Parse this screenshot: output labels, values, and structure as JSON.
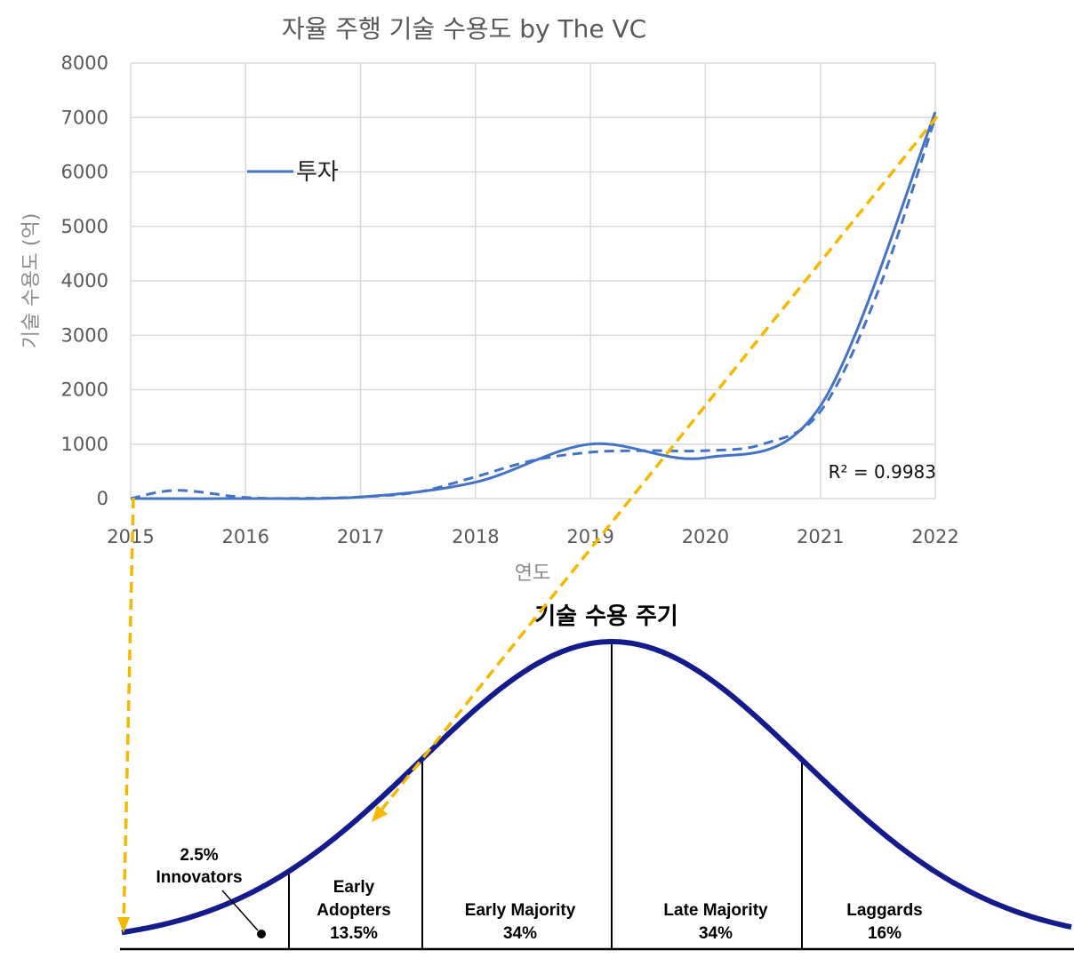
{
  "chart_data": [
    {
      "type": "line",
      "title": "자율 주행 기술 수용도 by The VC",
      "xlabel": "연도",
      "ylabel": "기술 수용도 (억)",
      "xlim": [
        2015,
        2022
      ],
      "ylim": [
        0,
        8000
      ],
      "x_ticks": [
        "2015",
        "2016",
        "2017",
        "2018",
        "2019",
        "2020",
        "2021",
        "2022"
      ],
      "y_ticks": [
        "0",
        "1000",
        "2000",
        "3000",
        "4000",
        "5000",
        "6000",
        "7000",
        "8000"
      ],
      "grid": true,
      "legend_position": "upper-left",
      "series": [
        {
          "name": "투자",
          "color": "#4472C4",
          "x": [
            2015,
            2016,
            2017,
            2018,
            2019,
            2020,
            2021,
            2022
          ],
          "values": [
            0,
            0,
            30,
            300,
            1000,
            750,
            1700,
            7100
          ]
        }
      ],
      "trendline": {
        "style": "dashed",
        "color": "#4472C4",
        "r_squared_label": "R² = 0.9983",
        "x": [
          2015,
          2015.4,
          2016,
          2016.5,
          2017,
          2017.5,
          2018,
          2018.5,
          2019,
          2019.5,
          2020,
          2020.5,
          2021,
          2021.5,
          2022
        ],
        "values": [
          0,
          150,
          20,
          5,
          30,
          120,
          400,
          700,
          850,
          880,
          880,
          1000,
          1600,
          3800,
          7000
        ]
      }
    },
    {
      "type": "area",
      "title": "기술 수용 주기",
      "segments": [
        {
          "percent": "2.5%",
          "name": "Innovators"
        },
        {
          "name": "Early Adopters",
          "percent": "13.5%"
        },
        {
          "name": "Early Majority",
          "percent": "34%"
        },
        {
          "name": "Late Majority",
          "percent": "34%"
        },
        {
          "name": "Laggards",
          "percent": "16%"
        }
      ],
      "curve_color": "#141b8a",
      "arrow_color": "#f5b800"
    }
  ],
  "labels": {
    "early_adopters_l1": "Early",
    "early_adopters_l2": "Adopters"
  }
}
